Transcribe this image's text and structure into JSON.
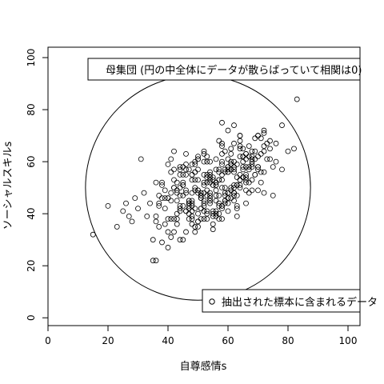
{
  "chart_data": {
    "type": "scatter",
    "xlabel": "自尊感情s",
    "ylabel": "ソーシャルスキルs",
    "xlim": [
      0,
      104
    ],
    "ylim": [
      -3,
      104
    ],
    "x_ticks": [
      0,
      20,
      40,
      60,
      80,
      100
    ],
    "y_ticks": [
      0,
      20,
      40,
      60,
      80,
      100
    ],
    "grid": false,
    "population_circle": {
      "cx": 50,
      "cy": 50,
      "r": 37.5
    },
    "legend_top": {
      "text": "母集団 (円の中全体にデータが散らばっていて相関は0)",
      "position": "top-center"
    },
    "legend_bottom": {
      "text": "抽出された標本に含まれるデータ",
      "position": "bottom-right",
      "symbol": "open-circle"
    },
    "series": [
      {
        "marker": "open-circle",
        "x": [
          15,
          20,
          23,
          25,
          26,
          27,
          28,
          29,
          30,
          31,
          32,
          33,
          35,
          36,
          37,
          36,
          37,
          38,
          39,
          40,
          41,
          41,
          42,
          43,
          44,
          45,
          46,
          47,
          48,
          49,
          48,
          49,
          50,
          51,
          52,
          53,
          54,
          55,
          56,
          57,
          58,
          59,
          60,
          61,
          62,
          40,
          42,
          44,
          46,
          48,
          50,
          52,
          54,
          56,
          58,
          60,
          62,
          64,
          66,
          68,
          43,
          45,
          47,
          49,
          51,
          53,
          55,
          57,
          59,
          61,
          63,
          65,
          67,
          69,
          71,
          35,
          37,
          39,
          41,
          43,
          45,
          47,
          49,
          51,
          53,
          55,
          57,
          59,
          61,
          63,
          44,
          46,
          48,
          50,
          52,
          54,
          56,
          58,
          60,
          62,
          64,
          66,
          68,
          70,
          72,
          50,
          52,
          54,
          56,
          58,
          60,
          62,
          64,
          66,
          68,
          70,
          72,
          74,
          76,
          78,
          38,
          40,
          42,
          44,
          46,
          48,
          50,
          52,
          54,
          56,
          58,
          60,
          62,
          64,
          66,
          45,
          47,
          49,
          51,
          53,
          55,
          57,
          59,
          61,
          63,
          65,
          67,
          69,
          71,
          73,
          41,
          43,
          45,
          47,
          49,
          51,
          53,
          55,
          57,
          59,
          61,
          63,
          65,
          67,
          69,
          36,
          38,
          40,
          42,
          44,
          46,
          48,
          50,
          52,
          54,
          56,
          58,
          60,
          62,
          64,
          47,
          49,
          51,
          53,
          55,
          57,
          59,
          61,
          63,
          65,
          67,
          69,
          71,
          73,
          75,
          42,
          44,
          46,
          48,
          50,
          52,
          54,
          56,
          58,
          60,
          62,
          64,
          66,
          68,
          70,
          39,
          41,
          43,
          45,
          47,
          49,
          51,
          53,
          55,
          57,
          59,
          61,
          63,
          65,
          67,
          48,
          50,
          52,
          54,
          56,
          58,
          60,
          62,
          64,
          66,
          68,
          70,
          72,
          74,
          76,
          44,
          46,
          48,
          50,
          52,
          54,
          56,
          58,
          60,
          62,
          64,
          66,
          68,
          70,
          72,
          37,
          39,
          41,
          43,
          45,
          47,
          49,
          51,
          53,
          55,
          57,
          59,
          61,
          63,
          65,
          46,
          48,
          50,
          52,
          54,
          56,
          58,
          60,
          62,
          64,
          66,
          68,
          70,
          72,
          74,
          43,
          45,
          47,
          49,
          51,
          53,
          55,
          57,
          59,
          61,
          63,
          65,
          67,
          69,
          71,
          58,
          60,
          62,
          64,
          66,
          72,
          75,
          78,
          80,
          82,
          83,
          70,
          65,
          57,
          53,
          34,
          36,
          38,
          40,
          42,
          44,
          46,
          48,
          50,
          52,
          54,
          56,
          58,
          60,
          62,
          40,
          42,
          44,
          46,
          48,
          50,
          52,
          54,
          56,
          58,
          60,
          62,
          64,
          66,
          68
        ],
        "y": [
          32,
          43,
          35,
          41,
          44,
          39,
          37,
          46,
          42,
          61,
          48,
          39,
          22,
          52,
          47,
          22,
          35,
          29,
          42,
          38,
          31,
          45,
          50,
          36,
          41,
          47,
          33,
          44,
          39,
          49,
          55,
          42,
          37,
          46,
          51,
          40,
          44,
          34,
          49,
          38,
          53,
          45,
          41,
          57,
          48,
          27,
          38,
          30,
          49,
          43,
          35,
          52,
          46,
          40,
          55,
          48,
          58,
          51,
          44,
          60,
          45,
          51,
          38,
          56,
          42,
          49,
          36,
          53,
          47,
          59,
          42,
          54,
          48,
          61,
          52,
          30,
          44,
          36,
          48,
          40,
          52,
          45,
          33,
          47,
          38,
          51,
          43,
          56,
          46,
          39,
          57,
          41,
          53,
          37,
          60,
          45,
          51,
          42,
          56,
          48,
          62,
          52,
          58,
          49,
          64,
          40,
          55,
          47,
          61,
          43,
          58,
          50,
          65,
          53,
          59,
          62,
          56,
          68,
          60,
          57,
          52,
          46,
          57,
          42,
          48,
          36,
          61,
          44,
          55,
          39,
          50,
          58,
          45,
          53,
          63,
          30,
          44,
          50,
          38,
          54,
          41,
          47,
          57,
          49,
          43,
          60,
          52,
          64,
          56,
          67,
          61,
          48,
          55,
          43,
          59,
          47,
          52,
          40,
          57,
          45,
          63,
          51,
          58,
          66,
          55,
          39,
          46,
          33,
          50,
          43,
          55,
          38,
          48,
          41,
          53,
          45,
          60,
          48,
          56,
          50,
          42,
          56,
          46,
          60,
          39,
          53,
          48,
          65,
          51,
          57,
          62,
          55,
          69,
          61,
          58,
          64,
          50,
          57,
          44,
          61,
          48,
          54,
          41,
          59,
          46,
          67,
          53,
          63,
          49,
          70,
          46,
          38,
          52,
          43,
          57,
          35,
          48,
          41,
          54,
          44,
          50,
          59,
          47,
          62,
          57,
          48,
          62,
          43,
          56,
          51,
          66,
          46,
          60,
          55,
          49,
          64,
          58,
          72,
          61,
          67,
          55,
          41,
          59,
          49,
          63,
          45,
          52,
          38,
          57,
          47,
          70,
          54,
          61,
          57,
          71,
          43,
          49,
          56,
          38,
          51,
          45,
          60,
          42,
          47,
          53,
          40,
          64,
          50,
          59,
          54,
          59,
          45,
          53,
          64,
          48,
          57,
          43,
          61,
          51,
          68,
          55,
          62,
          58,
          66,
          65,
          49,
          58,
          40,
          53,
          47,
          62,
          51,
          56,
          44,
          60,
          54,
          65,
          58,
          69,
          63,
          75,
          72,
          74,
          66,
          61,
          48,
          47,
          74,
          64,
          65,
          84,
          70,
          62,
          68,
          55,
          44,
          37,
          51,
          46,
          33,
          58,
          41,
          55,
          49,
          38,
          52,
          47,
          63,
          44,
          57,
          59,
          53,
          47,
          63,
          41,
          57,
          45,
          60,
          52,
          67,
          56,
          48,
          70,
          58,
          53
        ]
      }
    ]
  }
}
